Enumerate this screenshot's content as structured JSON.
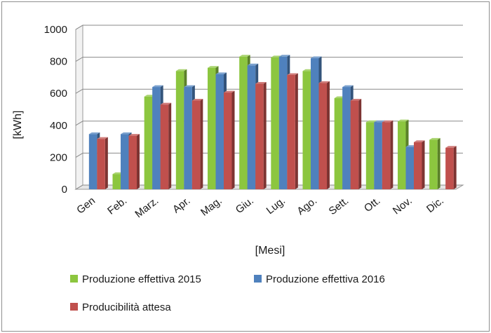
{
  "chart_data": {
    "type": "bar",
    "title": "",
    "xlabel": "[Mesi]",
    "ylabel": "[kWh]",
    "ylim": [
      0,
      1000
    ],
    "yticks": [
      "0",
      "200",
      "400",
      "600",
      "800",
      "1000"
    ],
    "grid": true,
    "legend_position": "bottom",
    "categories": [
      "Gen",
      "Feb.",
      "Marz.",
      "Apr.",
      "Mag.",
      "Giu.",
      "Lug.",
      "Ago.",
      "Sett.",
      "Ott.",
      "Nov.",
      "Dic."
    ],
    "series": [
      {
        "name": "Produzione effettiva 2015",
        "color": "#8cc63f",
        "values": [
          null,
          95,
          580,
          740,
          760,
          830,
          825,
          740,
          570,
          420,
          425,
          310
        ]
      },
      {
        "name": "Produzione effettiva 2016",
        "color": "#4f81bd",
        "values": [
          345,
          345,
          640,
          640,
          720,
          775,
          830,
          820,
          640,
          420,
          265,
          null
        ]
      },
      {
        "name": "Producibilità attesa",
        "color": "#c0504d",
        "values": [
          315,
          335,
          530,
          555,
          605,
          660,
          715,
          665,
          555,
          420,
          295,
          260
        ]
      }
    ]
  }
}
